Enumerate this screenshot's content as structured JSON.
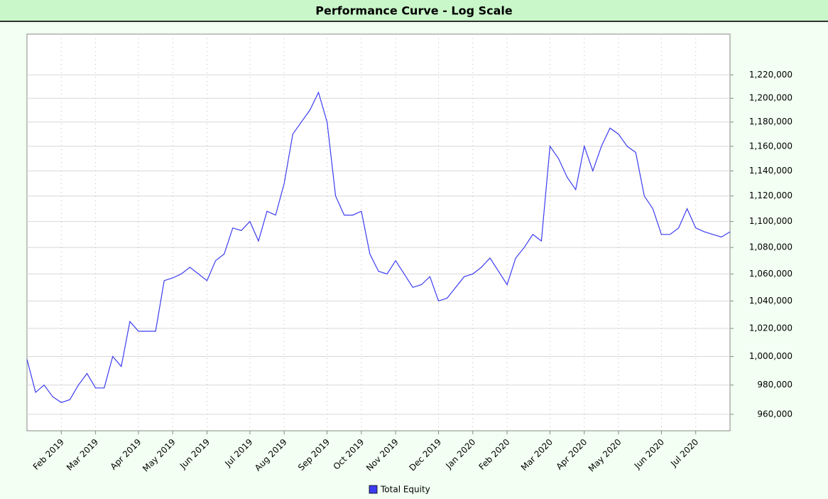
{
  "chart_data": {
    "type": "line",
    "title": "Performance Curve - Log Scale",
    "categories": [
      null,
      null,
      null,
      null,
      "Feb 2019",
      null,
      null,
      null,
      "Mar 2019",
      null,
      null,
      null,
      null,
      "Apr 2019",
      null,
      null,
      null,
      "May 2019",
      null,
      null,
      null,
      "Jun 2019",
      null,
      null,
      null,
      null,
      "Jul 2019",
      null,
      null,
      null,
      "Aug 2019",
      null,
      null,
      null,
      null,
      "Sep 2019",
      null,
      null,
      null,
      "Oct 2019",
      null,
      null,
      null,
      "Nov 2019",
      null,
      null,
      null,
      null,
      "Dec 2019",
      null,
      null,
      null,
      "Jan 2020",
      null,
      null,
      null,
      "Feb 2020",
      null,
      null,
      null,
      null,
      "Mar 2020",
      null,
      null,
      null,
      "Apr 2020",
      null,
      null,
      null,
      "May 2020",
      null,
      null,
      null,
      null,
      "Jun 2020",
      null,
      null,
      null,
      "Jul 2020",
      null,
      null,
      null,
      null
    ],
    "series": [
      {
        "name": "Total Equity",
        "color": "#3c3cf0",
        "values": [
          998000,
          975000,
          980000,
          972000,
          968000,
          970000,
          980000,
          988000,
          978000,
          978000,
          1000000,
          993000,
          1025000,
          1018000,
          1018000,
          1018000,
          1055000,
          1057000,
          1060000,
          1065000,
          1060000,
          1055000,
          1070000,
          1075000,
          1095000,
          1093000,
          1100000,
          1085000,
          1108000,
          1105000,
          1130000,
          1170000,
          1180000,
          1190000,
          1205000,
          1180000,
          1120000,
          1105000,
          1105000,
          1108000,
          1075000,
          1062000,
          1060000,
          1070000,
          1060000,
          1050000,
          1052000,
          1058000,
          1040000,
          1042000,
          1050000,
          1058000,
          1060000,
          1065000,
          1072000,
          1062000,
          1052000,
          1072000,
          1080000,
          1090000,
          1085000,
          1160000,
          1150000,
          1135000,
          1125000,
          1160000,
          1140000,
          1160000,
          1175000,
          1170000,
          1160000,
          1155000,
          1120000,
          1110000,
          1090000,
          1090000,
          1095000,
          1110000,
          1095000,
          1092000,
          1090000,
          1088000,
          1092000
        ]
      }
    ],
    "log_scale": true,
    "ylim": [
      948900,
      1255600
    ],
    "yticks": [
      {
        "value": 960000,
        "label": "960,000"
      },
      {
        "value": 980000,
        "label": "980,000"
      },
      {
        "value": 1000000,
        "label": "1,000,000"
      },
      {
        "value": 1020000,
        "label": "1,020,000"
      },
      {
        "value": 1040000,
        "label": "1,040,000"
      },
      {
        "value": 1060000,
        "label": "1,060,000"
      },
      {
        "value": 1080000,
        "label": "1,080,000"
      },
      {
        "value": 1100000,
        "label": "1,100,000"
      },
      {
        "value": 1120000,
        "label": "1,120,000"
      },
      {
        "value": 1140000,
        "label": "1,140,000"
      },
      {
        "value": 1160000,
        "label": "1,160,000"
      },
      {
        "value": 1180000,
        "label": "1,180,000"
      },
      {
        "value": 1200000,
        "label": "1,200,000"
      },
      {
        "value": 1220000,
        "label": "1,220,000"
      }
    ],
    "grid": true,
    "legend": "bottom"
  }
}
